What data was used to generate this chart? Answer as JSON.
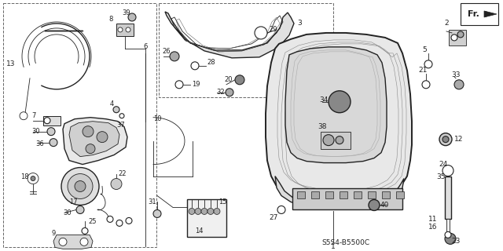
{
  "bg_color": "#ffffff",
  "diagram_code": "S5S4-B5500C",
  "line_color": "#222222",
  "thin": 0.6,
  "med": 1.0,
  "thick": 1.4
}
